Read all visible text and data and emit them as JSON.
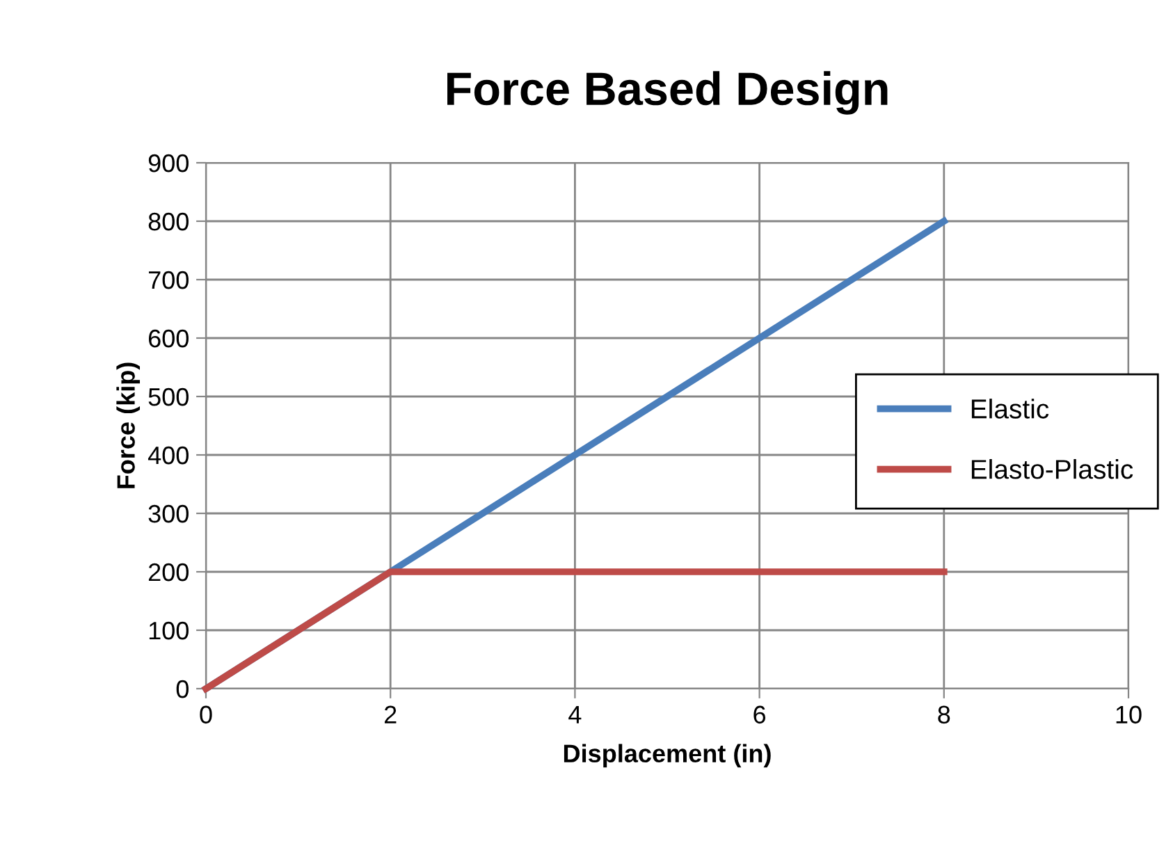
{
  "chart_data": {
    "type": "line",
    "title": "Force Based Design",
    "xlabel": "Displacement (in)",
    "ylabel": "Force (kip)",
    "series": [
      {
        "name": "Elastic",
        "color": "#4a7ebb",
        "x": [
          0,
          2,
          8
        ],
        "values": [
          0,
          200,
          800
        ]
      },
      {
        "name": "Elasto-Plastic",
        "color": "#be4b48",
        "x": [
          0,
          2,
          8
        ],
        "values": [
          0,
          200,
          200
        ]
      }
    ],
    "xlim": [
      0,
      10
    ],
    "xticks": [
      0,
      2,
      4,
      6,
      8,
      10
    ],
    "ylim": [
      0,
      900
    ],
    "yticks": [
      0,
      100,
      200,
      300,
      400,
      500,
      600,
      700,
      800,
      900
    ],
    "grid": true,
    "legend": "right",
    "marker": "none",
    "line_style": "solid"
  }
}
